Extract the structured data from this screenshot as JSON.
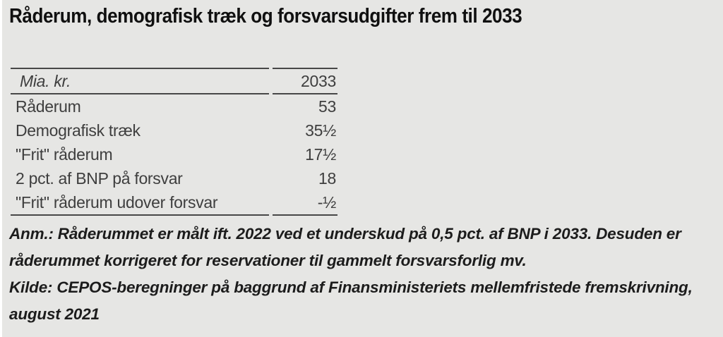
{
  "title": "Råderum, demografisk træk og forsvarsudgifter frem til 2033",
  "table": {
    "header": {
      "unit_label": "Mia. kr.",
      "year": "2033"
    },
    "rows": [
      {
        "label": "Råderum",
        "value": "53"
      },
      {
        "label": "Demografisk træk",
        "value": "35½"
      },
      {
        "label": "\"Frit\" råderum",
        "value": "17½"
      },
      {
        "label": "2 pct. af BNP på forsvar",
        "value": "18"
      },
      {
        "label": "\"Frit\" råderum udover forsvar",
        "value": "-½"
      }
    ]
  },
  "notes": {
    "anm": "Anm.: Råderummet er målt ift. 2022 ved et underskud på 0,5 pct. af BNP i 2033. Desuden er råderummet korrigeret for reservationer til gammelt forsvarsforlig mv.",
    "kilde": "Kilde: CEPOS-beregninger på baggrund af Finansministeriets mellemfristede fremskrivning, august 2021"
  },
  "colors": {
    "background": "#e6e6e4",
    "title_text": "#101010",
    "table_text": "#3e3e3e",
    "table_border": "#474747",
    "note_text": "#1c1c1c"
  },
  "chart_data": {
    "type": "table",
    "title": "Råderum, demografisk træk og forsvarsudgifter frem til 2033",
    "unit": "Mia. kr.",
    "columns": [
      "Mia. kr.",
      "2033"
    ],
    "rows": [
      {
        "label": "Råderum",
        "display": "53",
        "value": 53
      },
      {
        "label": "Demografisk træk",
        "display": "35½",
        "value": 35.5
      },
      {
        "label": "\"Frit\" råderum",
        "display": "17½",
        "value": 17.5
      },
      {
        "label": "2 pct. af BNP på forsvar",
        "display": "18",
        "value": 18
      },
      {
        "label": "\"Frit\" råderum udover forsvar",
        "display": "-½",
        "value": -0.5
      }
    ],
    "note": "Anm.: Råderummet er målt ift. 2022 ved et underskud på 0,5 pct. af BNP i 2033. Desuden er råderummet korrigeret for reservationer til gammelt forsvarsforlig mv.",
    "source": "Kilde: CEPOS-beregninger på baggrund af Finansministeriets mellemfristede fremskrivning, august 2021"
  }
}
